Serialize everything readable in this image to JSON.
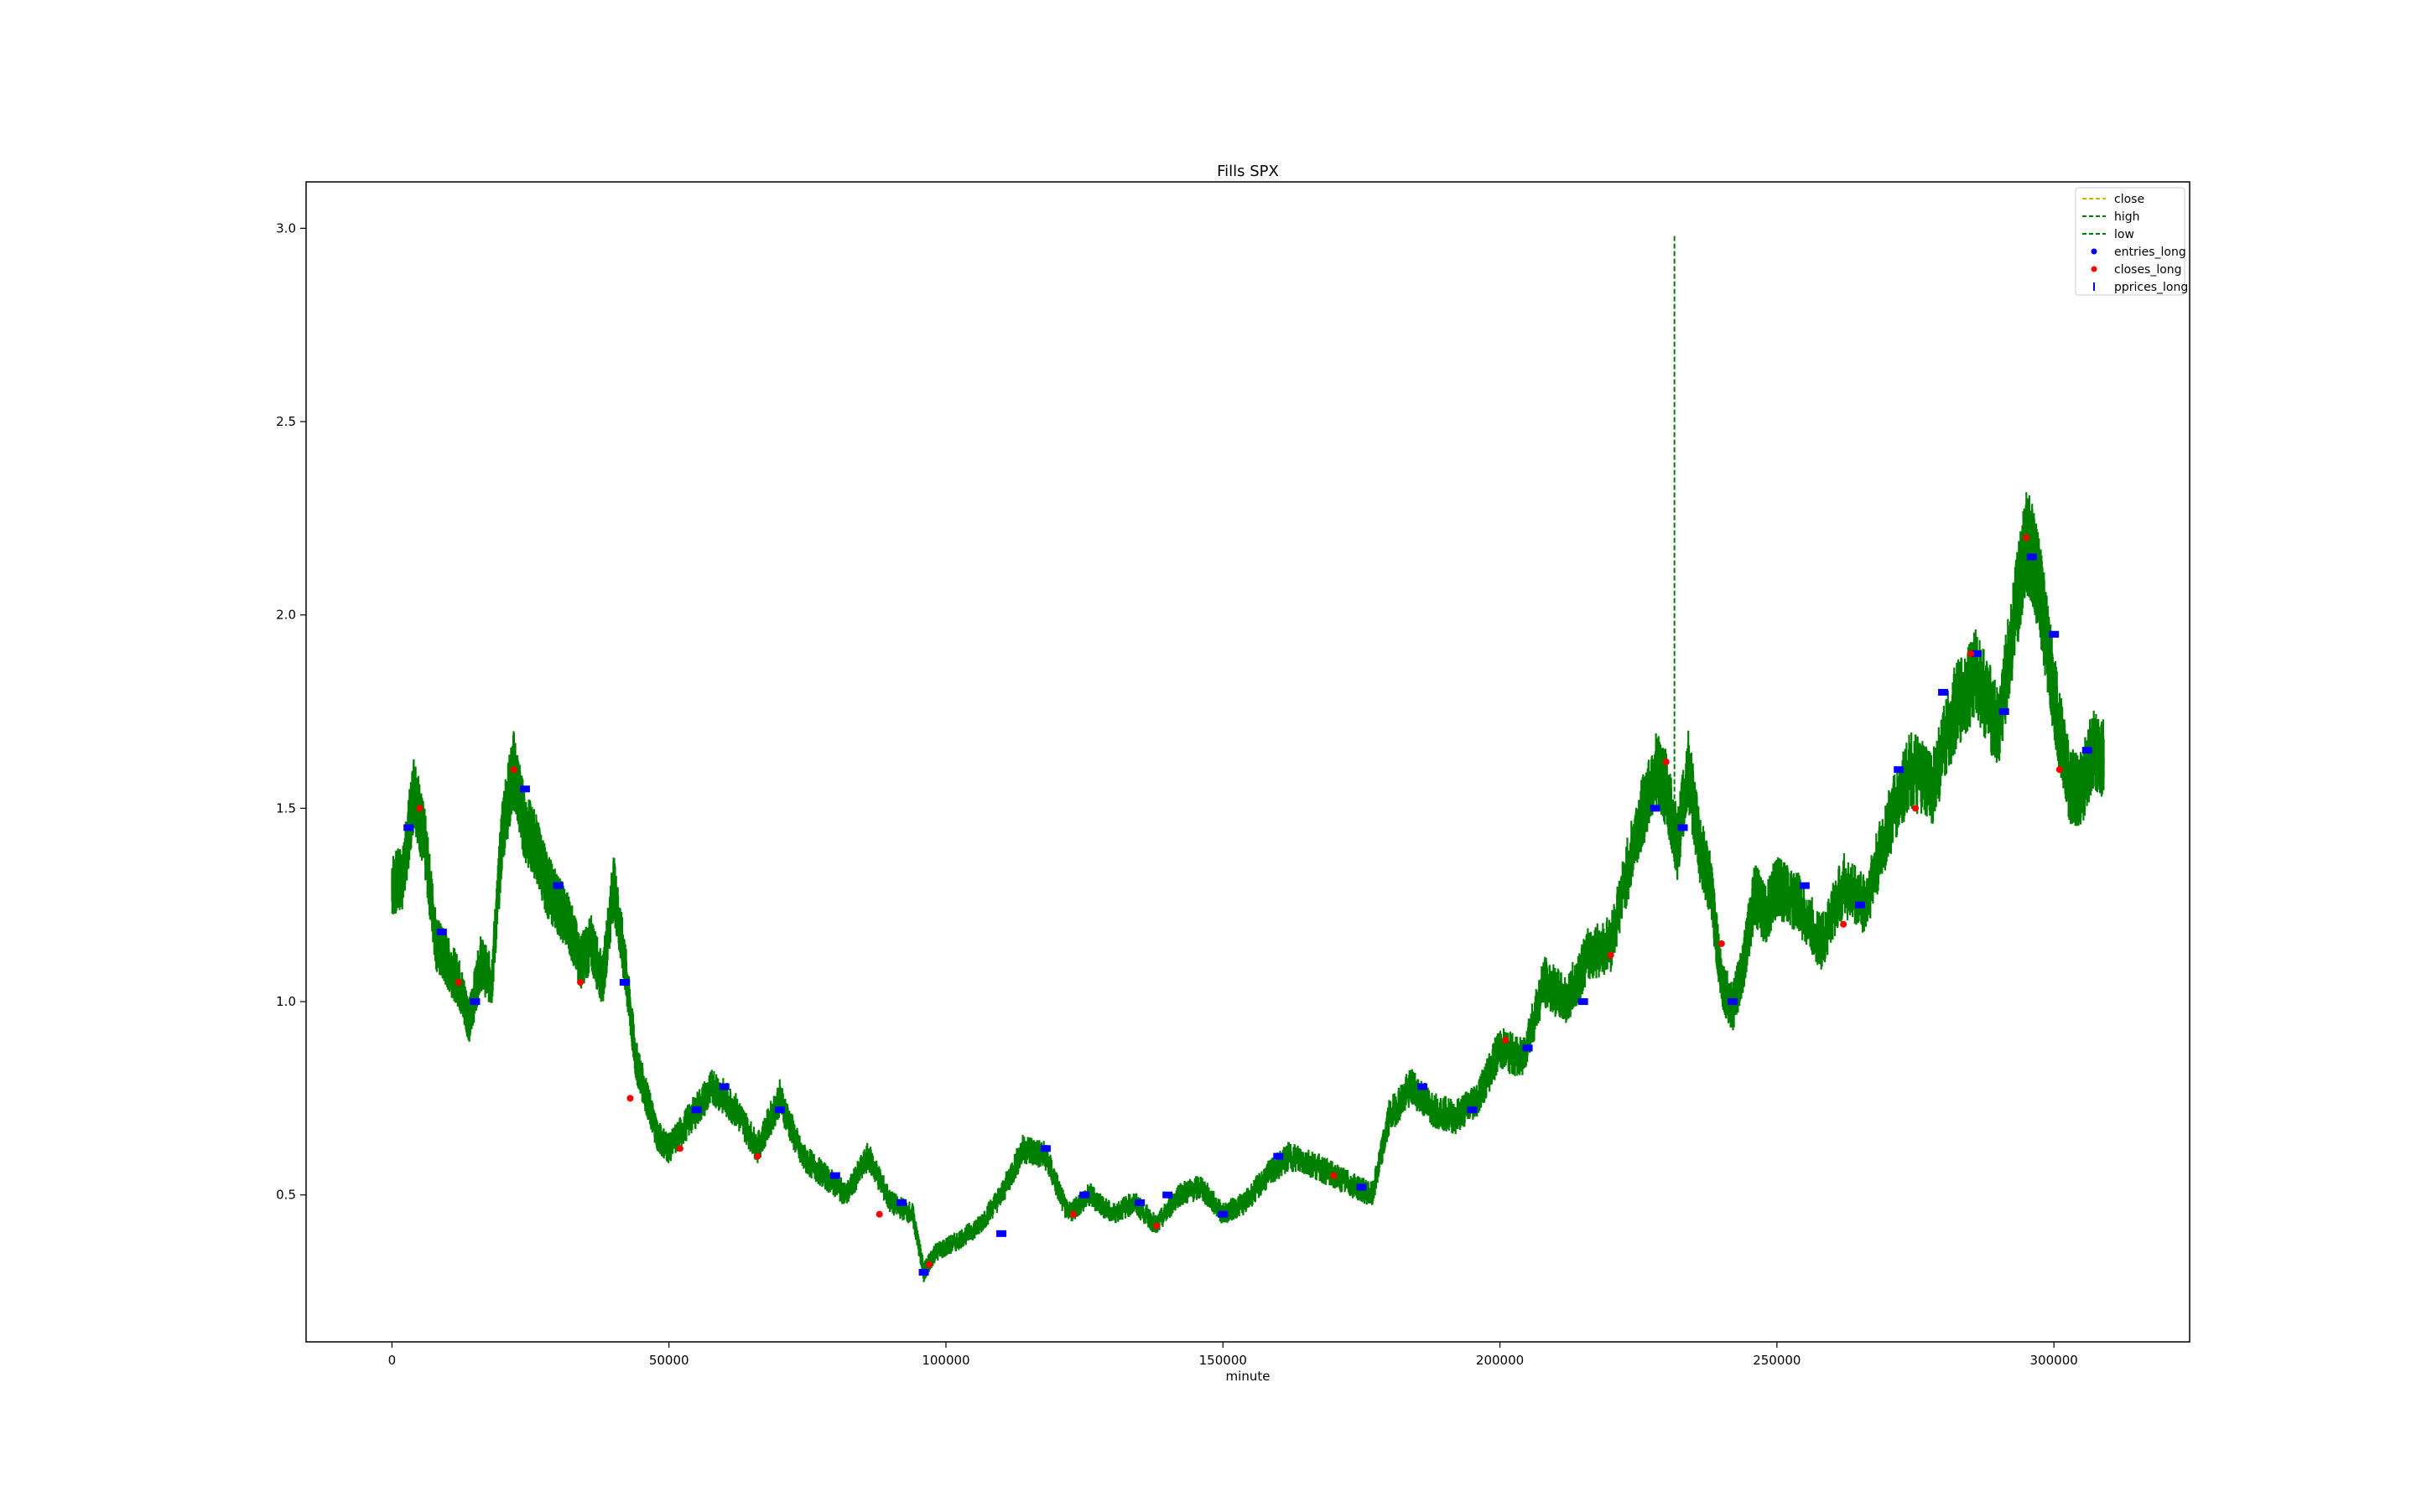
{
  "chart_data": {
    "type": "line",
    "title": "Fills SPX",
    "xlabel": "minute",
    "ylabel": "",
    "xlim": [
      -15500,
      324500
    ],
    "ylim": [
      0.12,
      3.12
    ],
    "x_ticks": [
      0,
      50000,
      100000,
      150000,
      200000,
      250000,
      300000
    ],
    "x_tick_labels": [
      "0",
      "50000",
      "100000",
      "150000",
      "200000",
      "250000",
      "300000"
    ],
    "y_ticks": [
      0.5,
      1.0,
      1.5,
      2.0,
      2.5,
      3.0
    ],
    "y_tick_labels": [
      "0.5",
      "1.0",
      "1.5",
      "2.0",
      "2.5",
      "3.0"
    ],
    "grid": false,
    "legend_position": "top-right",
    "colors": {
      "close": "#bfbf00",
      "high": "#008000",
      "low": "#008000",
      "entries_long": "#0000ff",
      "closes_long": "#ff0000",
      "pprices_long": "#0000ff"
    },
    "legend": [
      {
        "label": "close",
        "style": "dashed",
        "color": "#bfbf00"
      },
      {
        "label": "high",
        "style": "dashed",
        "color": "#008000"
      },
      {
        "label": "low",
        "style": "dashed",
        "color": "#008000"
      },
      {
        "label": "entries_long",
        "style": "dot",
        "color": "#0000ff"
      },
      {
        "label": "closes_long",
        "style": "dot",
        "color": "#ff0000"
      },
      {
        "label": "pprices_long",
        "style": "tick",
        "color": "#0000ff"
      }
    ],
    "series": [
      {
        "name": "close",
        "x": [
          0,
          2000,
          4000,
          6000,
          8000,
          10000,
          12000,
          14000,
          16000,
          18000,
          20000,
          22000,
          24000,
          26000,
          28000,
          30000,
          32000,
          34000,
          36000,
          38000,
          40000,
          42000,
          44000,
          46000,
          48000,
          50000,
          54000,
          58000,
          62000,
          66000,
          70000,
          74000,
          78000,
          82000,
          86000,
          90000,
          94000,
          96000,
          98000,
          102000,
          106000,
          110000,
          114000,
          118000,
          122000,
          126000,
          130000,
          134000,
          138000,
          142000,
          146000,
          150000,
          154000,
          158000,
          162000,
          166000,
          170000,
          174000,
          177000,
          180000,
          184000,
          188000,
          192000,
          196000,
          200000,
          204000,
          208000,
          212000,
          216000,
          220000,
          224000,
          228000,
          230000,
          232000,
          234000,
          236000,
          238000,
          240000,
          242000,
          244000,
          246000,
          248000,
          250000,
          254000,
          258000,
          262000,
          266000,
          270000,
          274000,
          278000,
          282000,
          286000,
          290000,
          293000,
          295000,
          297000,
          299000,
          301000,
          303000,
          305000,
          307000,
          309000
        ],
        "values": [
          1.3,
          1.32,
          1.55,
          1.4,
          1.15,
          1.1,
          1.05,
          0.95,
          1.1,
          1.05,
          1.45,
          1.6,
          1.45,
          1.4,
          1.3,
          1.25,
          1.2,
          1.1,
          1.15,
          1.05,
          1.3,
          1.1,
          0.85,
          0.75,
          0.65,
          0.62,
          0.7,
          0.78,
          0.72,
          0.62,
          0.75,
          0.6,
          0.55,
          0.5,
          0.6,
          0.48,
          0.45,
          0.3,
          0.35,
          0.38,
          0.42,
          0.5,
          0.62,
          0.6,
          0.45,
          0.5,
          0.45,
          0.48,
          0.42,
          0.5,
          0.52,
          0.45,
          0.48,
          0.55,
          0.6,
          0.58,
          0.55,
          0.52,
          0.5,
          0.7,
          0.78,
          0.72,
          0.7,
          0.75,
          0.88,
          0.85,
          1.05,
          1.0,
          1.12,
          1.15,
          1.4,
          1.6,
          1.55,
          1.4,
          1.6,
          1.4,
          1.3,
          1.05,
          0.98,
          1.1,
          1.28,
          1.22,
          1.3,
          1.25,
          1.15,
          1.3,
          1.25,
          1.45,
          1.6,
          1.55,
          1.75,
          1.85,
          1.7,
          2.0,
          2.2,
          2.1,
          1.9,
          1.7,
          1.55,
          1.55,
          1.65,
          1.63
        ]
      }
    ],
    "spike": {
      "x": 231500,
      "high": 2.98
    },
    "entries_long": {
      "x": [
        3000,
        9000,
        15000,
        24000,
        30000,
        42000,
        55000,
        60000,
        70000,
        80000,
        92000,
        96000,
        110000,
        118000,
        125000,
        135000,
        140000,
        150000,
        160000,
        175000,
        186000,
        195000,
        205000,
        215000,
        228000,
        233000,
        242000,
        255000,
        265000,
        272000,
        280000,
        286000,
        291000,
        296000,
        300000,
        306000
      ],
      "values": [
        1.45,
        1.18,
        1.0,
        1.55,
        1.3,
        1.05,
        0.72,
        0.78,
        0.72,
        0.55,
        0.48,
        0.3,
        0.4,
        0.62,
        0.5,
        0.48,
        0.5,
        0.45,
        0.6,
        0.52,
        0.78,
        0.72,
        0.88,
        1.0,
        1.5,
        1.45,
        1.0,
        1.3,
        1.25,
        1.6,
        1.8,
        1.9,
        1.75,
        2.15,
        1.95,
        1.65
      ]
    },
    "closes_long": {
      "x": [
        5000,
        12000,
        22000,
        34000,
        43000,
        52000,
        66000,
        88000,
        97000,
        123000,
        138000,
        170000,
        201000,
        220000,
        230000,
        240000,
        262000,
        275000,
        285000,
        295000,
        301000
      ],
      "values": [
        1.5,
        1.05,
        1.6,
        1.05,
        0.75,
        0.62,
        0.6,
        0.45,
        0.32,
        0.45,
        0.42,
        0.55,
        0.9,
        1.12,
        1.62,
        1.15,
        1.2,
        1.5,
        1.9,
        2.2,
        1.6
      ]
    }
  }
}
